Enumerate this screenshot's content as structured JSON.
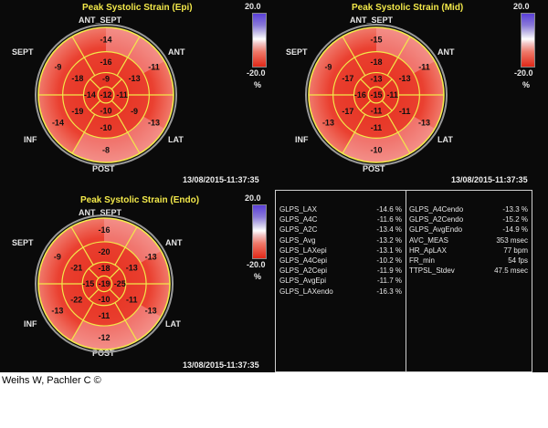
{
  "colors": {
    "title": "#f2e84a",
    "segment_fill": "#e83a2a",
    "border": "#f2e84a"
  },
  "panels": {
    "epi": {
      "title": "Peak Systolic Strain (Epi)",
      "labels": {
        "ant_sept": "ANT_SEPT",
        "ant": "ANT",
        "sept": "SEPT",
        "inf": "INF",
        "lat": "LAT",
        "post": "POST"
      },
      "scale_max": "20.0",
      "scale_min": "-20.0",
      "scale_unit": "%",
      "timestamp": "13/08/2015-11:37:35",
      "segments": {
        "basal": [
          "-14",
          "-11",
          "-13",
          "-8",
          "-14",
          "-9"
        ],
        "mid": [
          "-16",
          "-13",
          "-9",
          "-10",
          "-19",
          "-18"
        ],
        "apical": [
          "-9",
          "-11",
          "-10",
          "-14"
        ],
        "apex": "-12"
      }
    },
    "mid": {
      "title": "Peak Systolic Strain (Mid)",
      "labels": {
        "ant_sept": "ANT_SEPT",
        "ant": "ANT",
        "sept": "SEPT",
        "inf": "INF",
        "lat": "LAT",
        "post": "POST"
      },
      "scale_max": "20.0",
      "scale_min": "-20.0",
      "scale_unit": "%",
      "timestamp": "13/08/2015-11:37:35",
      "segments": {
        "basal": [
          "-15",
          "-11",
          "-13",
          "-10",
          "-13",
          "-9"
        ],
        "mid": [
          "-18",
          "-13",
          "-11",
          "-11",
          "-17",
          "-17"
        ],
        "apical": [
          "-13",
          "-11",
          "-11",
          "-16"
        ],
        "apex": "-15"
      }
    },
    "endo": {
      "title": "Peak Systolic Strain (Endo)",
      "labels": {
        "ant_sept": "ANT_SEPT",
        "ant": "ANT",
        "sept": "SEPT",
        "inf": "INF",
        "lat": "LAT",
        "post": "POST"
      },
      "scale_max": "20.0",
      "scale_min": "-20.0",
      "scale_unit": "%",
      "timestamp": "13/08/2015-11:37:35",
      "segments": {
        "basal": [
          "-16",
          "-13",
          "-13",
          "-12",
          "-13",
          "-9"
        ],
        "mid": [
          "-20",
          "-13",
          "-11",
          "-11",
          "-22",
          "-21"
        ],
        "apical": [
          "-18",
          "-25",
          "-10",
          "-15"
        ],
        "apex": "-19"
      }
    }
  },
  "table": {
    "left": [
      {
        "key": "GLPS_LAX",
        "value": "-14.6 %"
      },
      {
        "key": "GLPS_A4C",
        "value": "-11.6 %"
      },
      {
        "key": "GLPS_A2C",
        "value": "-13.4 %"
      },
      {
        "key": "GLPS_Avg",
        "value": "-13.2 %"
      },
      {
        "key": "GLPS_LAXepi",
        "value": "-13.1 %"
      },
      {
        "key": "GLPS_A4Cepi",
        "value": "-10.2 %"
      },
      {
        "key": "GLPS_A2Cepi",
        "value": "-11.9 %"
      },
      {
        "key": "GLPS_AvgEpi",
        "value": "-11.7 %"
      },
      {
        "key": "GLPS_LAXendo",
        "value": "-16.3 %"
      }
    ],
    "right": [
      {
        "key": "GLPS_A4Cendo",
        "value": "-13.3 %"
      },
      {
        "key": "GLPS_A2Cendo",
        "value": "-15.2 %"
      },
      {
        "key": "GLPS_AvgEndo",
        "value": "-14.9 %"
      },
      {
        "key": "AVC_MEAS",
        "value": "353 msec"
      },
      {
        "key": "HR_ApLAX",
        "value": "77 bpm"
      },
      {
        "key": "FR_min",
        "value": "54 fps"
      },
      {
        "key": "TTPSL_Stdev",
        "value": "47.5 msec"
      }
    ]
  },
  "credit": "Weihs W, Pachler C ©"
}
